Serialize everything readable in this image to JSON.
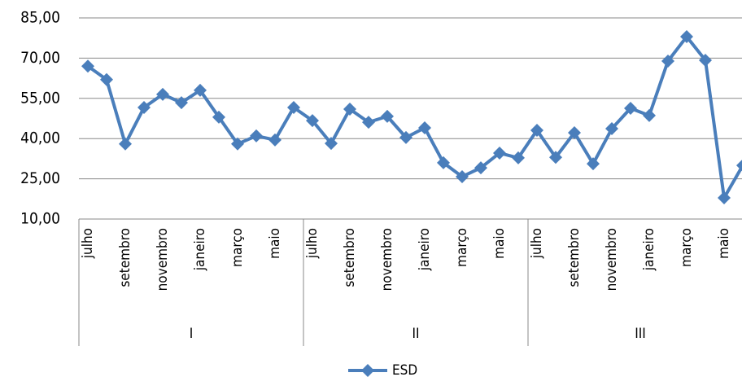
{
  "chart_data": {
    "type": "line",
    "categories": [
      "julho",
      null,
      "setembro",
      null,
      "novembro",
      null,
      "janeiro",
      null,
      "março",
      null,
      "maio",
      null,
      "julho",
      null,
      "setembro",
      null,
      "novembro",
      null,
      "janeiro",
      null,
      "março",
      null,
      "maio",
      null,
      "julho",
      null,
      "setembro",
      null,
      "novembro",
      null,
      "janeiro",
      null,
      "março",
      null,
      "maio",
      null
    ],
    "groups": [
      "I",
      "II",
      "III"
    ],
    "series": [
      {
        "name": "ESD",
        "color": "#4a7ebb",
        "values": [
          67,
          62,
          38,
          51.6,
          56.5,
          53.4,
          58,
          48,
          38,
          41,
          39.5,
          51.6,
          46.7,
          38.2,
          51,
          46.1,
          48.3,
          40.4,
          44,
          31,
          25.8,
          29.1,
          34.6,
          32.8,
          43.1,
          33,
          42.2,
          30.6,
          43.7,
          51.3,
          48.6,
          68.9,
          78,
          69.2,
          17.9,
          30
        ]
      }
    ],
    "ylim": [
      10,
      85
    ],
    "yticks": [
      {
        "value": 10,
        "label": "10,00"
      },
      {
        "value": 25,
        "label": "25,00"
      },
      {
        "value": 40,
        "label": "40,00"
      },
      {
        "value": 55,
        "label": "55,00"
      },
      {
        "value": 70,
        "label": "70,00"
      },
      {
        "value": 85,
        "label": "85,00"
      }
    ],
    "grid": true,
    "legend": "bottom"
  }
}
